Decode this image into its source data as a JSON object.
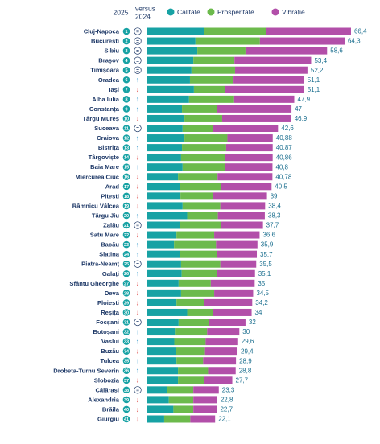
{
  "chart_data": {
    "type": "stacked-bar-horizontal",
    "header": {
      "current": "2025",
      "versus": "versus",
      "previous": "2024"
    },
    "categories": [
      "Cluj-Napoca",
      "București",
      "Sibiu",
      "Brașov",
      "Timișoara",
      "Oradea",
      "Iași",
      "Alba Iulia",
      "Constanța",
      "Târgu Mureș",
      "Suceava",
      "Craiova",
      "Bistrița",
      "Târgoviște",
      "Baia Mare",
      "Miercurea Ciuc",
      "Arad",
      "Pitești",
      "Râmnicu Vâlcea",
      "Târgu Jiu",
      "Zalău",
      "Satu Mare",
      "Bacău",
      "Slatina",
      "Piatra-Neamț",
      "Galați",
      "Sfântu Gheorghe",
      "Deva",
      "Ploiești",
      "Reșița",
      "Focșani",
      "Botoșani",
      "Vaslui",
      "Buzău",
      "Tulcea",
      "Drobeta-Turnu Severin",
      "Slobozia",
      "Călărași",
      "Alexandria",
      "Brăila",
      "Giurgiu"
    ],
    "ranks": [
      1,
      2,
      3,
      4,
      5,
      6,
      7,
      8,
      9,
      10,
      11,
      12,
      13,
      14,
      15,
      16,
      17,
      18,
      19,
      20,
      21,
      22,
      23,
      24,
      25,
      26,
      27,
      28,
      29,
      30,
      31,
      32,
      33,
      34,
      35,
      36,
      37,
      38,
      39,
      40,
      41
    ],
    "change": [
      "=",
      "=",
      "=",
      "=",
      "=",
      "↑",
      "↓",
      "↑",
      "↑",
      "↓",
      "=",
      "↑",
      "↑",
      "↓",
      "↑",
      "↓",
      "↓",
      "↓",
      "↓",
      "↑",
      "=",
      "↓",
      "↑",
      "↑",
      "=",
      "↑",
      "↓",
      "↓",
      "↓",
      "↓",
      "=",
      "↑",
      "↑",
      "↓",
      "↑",
      "↑",
      "↓",
      "=",
      "↓",
      "↓",
      "↓"
    ],
    "series": [
      {
        "name": "Calitate",
        "color": "#17a2a4",
        "values": [
          18.4,
          15.7,
          16.3,
          15,
          14.4,
          13.9,
          15.2,
          13.6,
          11.3,
          12.1,
          11.5,
          12.1,
          11.3,
          11,
          11.5,
          10,
          10.5,
          10.8,
          11.5,
          13,
          10.5,
          9.5,
          8.7,
          10.5,
          11,
          11.2,
          10.2,
          11,
          9.5,
          13,
          10.2,
          9,
          8.8,
          9.3,
          9.5,
          10,
          10,
          6.5,
          7,
          8.5,
          5.5
        ]
      },
      {
        "name": "Prosperitate",
        "color": "#6cba4c",
        "values": [
          20.2,
          21,
          15.7,
          13.4,
          14.2,
          14.2,
          10.2,
          14.7,
          11.5,
          12.3,
          10,
          14,
          14.4,
          14.2,
          13.9,
          12.9,
          13.4,
          10.5,
          12.3,
          10,
          13.5,
          12.3,
          13.7,
          12.3,
          12.8,
          11.5,
          10.5,
          10.8,
          9,
          8.5,
          10,
          10.5,
          10.2,
          9.5,
          8.7,
          9.8,
          8.5,
          8.5,
          8,
          6.5,
          8.5
        ]
      },
      {
        "name": "Vibrație",
        "color": "#b24fa9",
        "values": [
          27.8,
          27.6,
          26.6,
          25,
          23.6,
          23,
          25.7,
          19.6,
          24.2,
          22.5,
          21.1,
          14.78,
          15.17,
          15.66,
          15.4,
          17.88,
          16.6,
          17.7,
          14.6,
          15.3,
          13.7,
          14.8,
          13.5,
          12.9,
          11.7,
          12.4,
          14.3,
          12.7,
          15.7,
          12.5,
          11.8,
          10.5,
          10.6,
          10.6,
          10.7,
          9,
          9.2,
          8.3,
          7.8,
          7.7,
          8.1
        ]
      }
    ],
    "totals": [
      66.4,
      64.3,
      58.6,
      53.4,
      52.2,
      51.1,
      51.1,
      47.9,
      47,
      46.9,
      42.6,
      40.88,
      40.87,
      40.86,
      40.8,
      40.78,
      40.5,
      39,
      38.4,
      38.3,
      37.7,
      36.6,
      35.9,
      35.7,
      35.5,
      35.1,
      35,
      34.5,
      34.2,
      34,
      32,
      30,
      29.6,
      29.4,
      28.9,
      28.8,
      27.7,
      23.3,
      22.8,
      22.7,
      22.1
    ],
    "total_labels": [
      "66,4",
      "64,3",
      "58,6",
      "53,4",
      "52,2",
      "51,1",
      "51,1",
      "47,9",
      "47",
      "46,9",
      "42,6",
      "40,88",
      "40,87",
      "40,86",
      "40,8",
      "40,78",
      "40,5",
      "39",
      "38,4",
      "38,3",
      "37,7",
      "36,6",
      "35,9",
      "35,7",
      "35,5",
      "35,1",
      "35",
      "34,5",
      "34,2",
      "34",
      "32",
      "30",
      "29,6",
      "29,4",
      "28,9",
      "28,8",
      "27,7",
      "23,3",
      "22,8",
      "22,7",
      "22,1"
    ]
  }
}
